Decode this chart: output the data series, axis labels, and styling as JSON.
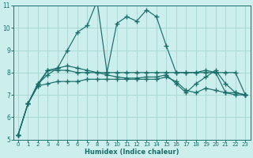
{
  "xlabel": "Humidex (Indice chaleur)",
  "bg_color": "#cceeec",
  "line_color": "#1a6e6a",
  "grid_color": "#aad8d4",
  "xlim": [
    -0.5,
    23.5
  ],
  "ylim": [
    5,
    11
  ],
  "yticks": [
    5,
    6,
    7,
    8,
    9,
    10,
    11
  ],
  "xticks": [
    0,
    1,
    2,
    3,
    4,
    5,
    6,
    7,
    8,
    9,
    10,
    11,
    12,
    13,
    14,
    15,
    16,
    17,
    18,
    19,
    20,
    21,
    22,
    23
  ],
  "series": [
    {
      "x": [
        0,
        1,
        2,
        3,
        4,
        5,
        6,
        7,
        8,
        9,
        10,
        11,
        12,
        13,
        14,
        15,
        16,
        17,
        18,
        19,
        20,
        21,
        22,
        23
      ],
      "y": [
        5.2,
        6.6,
        7.4,
        8.1,
        8.2,
        9.0,
        9.8,
        10.1,
        11.2,
        8.0,
        10.2,
        10.5,
        10.3,
        10.8,
        10.5,
        9.2,
        8.0,
        8.0,
        8.0,
        8.1,
        8.0,
        7.1,
        7.0,
        7.0
      ]
    },
    {
      "x": [
        0,
        1,
        2,
        3,
        4,
        5,
        6,
        7,
        8,
        9,
        10,
        11,
        12,
        13,
        14,
        15,
        16,
        17,
        18,
        19,
        20,
        21,
        22,
        23
      ],
      "y": [
        5.2,
        6.6,
        7.5,
        8.1,
        8.1,
        8.1,
        8.0,
        8.0,
        8.0,
        8.0,
        8.0,
        8.0,
        8.0,
        8.0,
        8.0,
        8.0,
        8.0,
        8.0,
        8.0,
        8.0,
        8.0,
        8.0,
        8.0,
        7.0
      ]
    },
    {
      "x": [
        0,
        1,
        2,
        3,
        4,
        5,
        6,
        7,
        8,
        9,
        10,
        11,
        12,
        13,
        14,
        15,
        16,
        17,
        18,
        19,
        20,
        21,
        22,
        23
      ],
      "y": [
        5.2,
        6.6,
        7.4,
        7.5,
        7.6,
        7.6,
        7.6,
        7.7,
        7.7,
        7.7,
        7.7,
        7.7,
        7.7,
        7.7,
        7.7,
        7.8,
        7.6,
        7.2,
        7.1,
        7.3,
        7.2,
        7.1,
        7.1,
        7.0
      ]
    },
    {
      "x": [
        0,
        1,
        2,
        3,
        4,
        5,
        6,
        7,
        8,
        9,
        10,
        11,
        12,
        13,
        14,
        15,
        16,
        17,
        18,
        19,
        20,
        21,
        22,
        23
      ],
      "y": [
        5.2,
        6.6,
        7.5,
        7.9,
        8.2,
        8.3,
        8.2,
        8.1,
        8.0,
        7.9,
        7.8,
        7.75,
        7.75,
        7.8,
        7.8,
        7.9,
        7.5,
        7.1,
        7.5,
        7.8,
        8.1,
        7.5,
        7.1,
        7.0
      ]
    }
  ]
}
